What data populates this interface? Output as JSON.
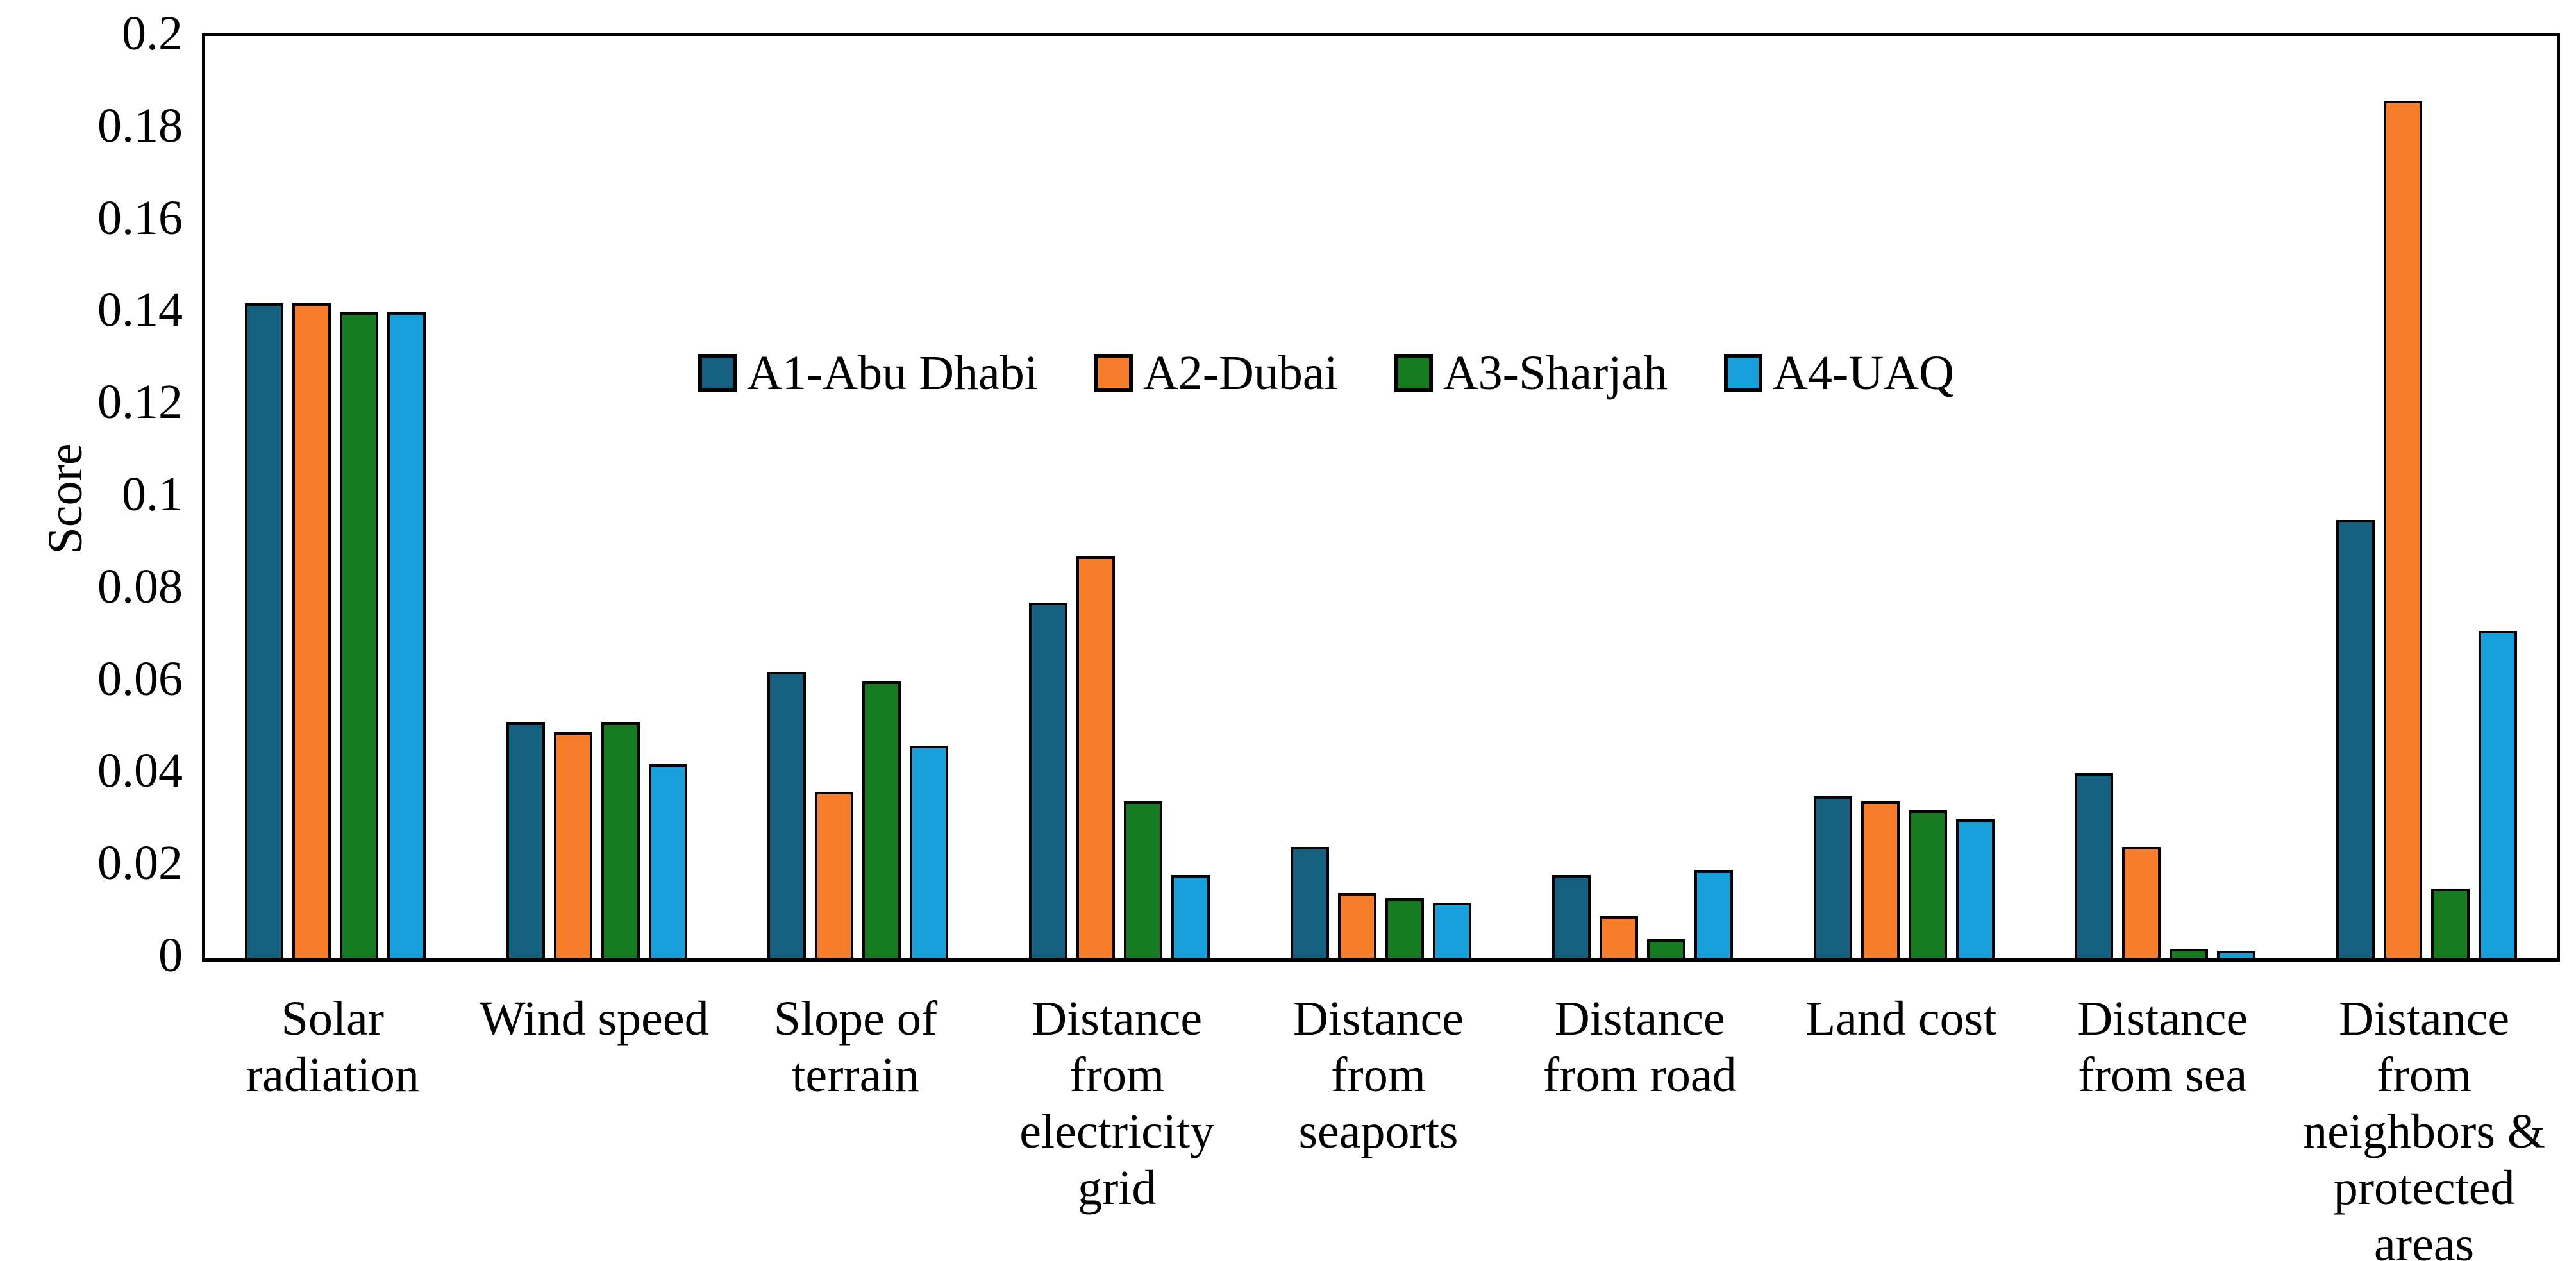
{
  "chart_data": {
    "type": "bar",
    "title": "",
    "xlabel": "",
    "ylabel": "Score",
    "ylim": [
      0,
      0.2
    ],
    "ytick_step": 0.02,
    "ytick_labels": [
      "0.2",
      "0.18",
      "0.16",
      "0.14",
      "0.12",
      "0.1",
      "0.08",
      "0.06",
      "0.04",
      "0.02",
      "0"
    ],
    "grid": false,
    "plot_frame": "closed-rectangle",
    "legend_position": "inside-upper-center",
    "background_color": "#ffffff",
    "bar_outline_color": "#000000",
    "categories": [
      "Solar\nradiation",
      "Wind speed",
      "Slope of\nterrain",
      "Distance\nfrom\nelectricity\ngrid",
      "Distance\nfrom seaports",
      "Distance\nfrom road",
      "Land cost",
      "Distance\nfrom sea",
      "Distance\nfrom\nneighbors &\nprotected\nareas"
    ],
    "series": [
      {
        "name": "A1-Abu Dhabi",
        "color": "#16607f",
        "values": [
          0.142,
          0.051,
          0.062,
          0.077,
          0.024,
          0.018,
          0.035,
          0.04,
          0.095
        ]
      },
      {
        "name": "A2-Dubai",
        "color": "#f87d2a",
        "values": [
          0.142,
          0.049,
          0.036,
          0.087,
          0.014,
          0.009,
          0.034,
          0.024,
          0.186
        ]
      },
      {
        "name": "A3-Sharjah",
        "color": "#157a20",
        "values": [
          0.14,
          0.051,
          0.06,
          0.034,
          0.013,
          0.004,
          0.032,
          0.002,
          0.015
        ]
      },
      {
        "name": "A4-UAQ",
        "color": "#17a0dc",
        "values": [
          0.14,
          0.042,
          0.046,
          0.018,
          0.012,
          0.019,
          0.03,
          0.0015,
          0.071
        ]
      }
    ]
  }
}
